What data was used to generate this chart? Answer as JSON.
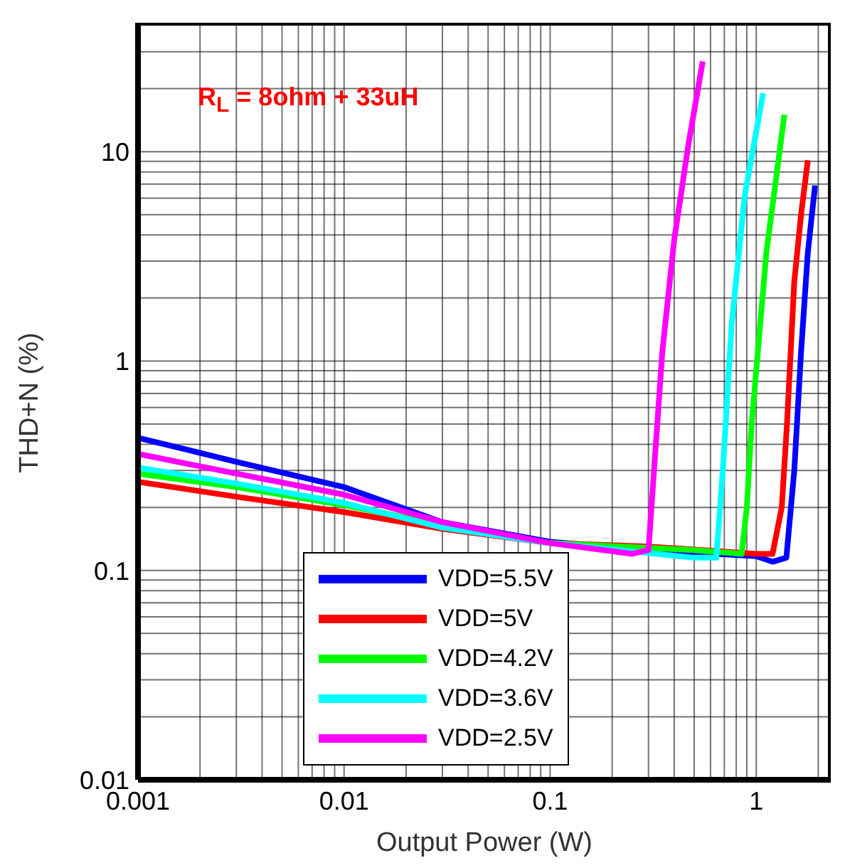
{
  "chart_data": {
    "type": "line",
    "xlabel": "Output Power (W)",
    "ylabel": "THD+N (%)",
    "annotations": [
      "R$_{L}$ = 8ohm + 33uH"
    ],
    "log": "xy",
    "grid": true,
    "legend": "bottom",
    "marker": "none",
    "line_style": "solid",
    "xlim": [
      0.001,
      2.3
    ],
    "ylim": [
      0.01,
      40
    ],
    "xticks": [
      0.001,
      {
        "value": 0.002,
        "label": null
      },
      {
        "value": 0.003,
        "label": null
      },
      {
        "value": 0.004,
        "label": null
      },
      {
        "value": 0.005,
        "label": null
      },
      {
        "value": 0.006,
        "label": null
      },
      {
        "value": 0.007,
        "label": null
      },
      {
        "value": 0.008,
        "label": null
      },
      {
        "value": 0.009,
        "label": null
      },
      0.01,
      {
        "value": 0.02,
        "label": null
      },
      {
        "value": 0.03,
        "label": null
      },
      {
        "value": 0.04,
        "label": null
      },
      {
        "value": 0.05,
        "label": null
      },
      {
        "value": 0.06,
        "label": null
      },
      {
        "value": 0.07,
        "label": null
      },
      {
        "value": 0.08,
        "label": null
      },
      {
        "value": 0.09,
        "label": null
      },
      0.1,
      {
        "value": 0.2,
        "label": null
      },
      {
        "value": 0.3,
        "label": null
      },
      {
        "value": 0.4,
        "label": null
      },
      {
        "value": 0.5,
        "label": null
      },
      {
        "value": 0.6,
        "label": null
      },
      {
        "value": 0.7,
        "label": null
      },
      {
        "value": 0.8,
        "label": null
      },
      {
        "value": 0.9,
        "label": null
      },
      1,
      {
        "value": 2,
        "label": null
      }
    ],
    "yticks": [
      0.01,
      {
        "value": 0.02,
        "label": null
      },
      {
        "value": 0.03,
        "label": null
      },
      {
        "value": 0.04,
        "label": null
      },
      {
        "value": 0.05,
        "label": null
      },
      {
        "value": 0.06,
        "label": null
      },
      {
        "value": 0.07,
        "label": null
      },
      {
        "value": 0.08,
        "label": null
      },
      {
        "value": 0.09,
        "label": null
      },
      0.1,
      {
        "value": 0.2,
        "label": null
      },
      {
        "value": 0.3,
        "label": null
      },
      {
        "value": 0.4,
        "label": null
      },
      {
        "value": 0.5,
        "label": null
      },
      {
        "value": 0.6,
        "label": null
      },
      {
        "value": 0.7,
        "label": null
      },
      {
        "value": 0.8,
        "label": null
      },
      {
        "value": 0.9,
        "label": null
      },
      1,
      {
        "value": 2,
        "label": null
      },
      {
        "value": 3,
        "label": null
      },
      {
        "value": 4,
        "label": null
      },
      {
        "value": 5,
        "label": null
      },
      {
        "value": 6,
        "label": null
      },
      {
        "value": 7,
        "label": null
      },
      {
        "value": 8,
        "label": null
      },
      {
        "value": 9,
        "label": null
      },
      10,
      {
        "value": 20,
        "label": null
      },
      {
        "value": 30,
        "label": null
      }
    ],
    "series": [
      {
        "name": "VDD=5.5V",
        "color": "#0000ff",
        "x": [
          0.001,
          0.003,
          0.01,
          0.03,
          0.1,
          0.3,
          1,
          1.2,
          1.4,
          1.53,
          1.65,
          1.78,
          1.93
        ],
        "values": [
          0.43,
          0.33,
          0.25,
          0.17,
          0.137,
          0.125,
          0.117,
          0.11,
          0.115,
          0.3,
          1.1,
          3.3,
          6.9
        ]
      },
      {
        "name": "VDD=5V",
        "color": "#ff0000",
        "x": [
          0.001,
          0.003,
          0.01,
          0.03,
          0.1,
          0.3,
          1,
          1.2,
          1.33,
          1.41,
          1.53,
          1.65,
          1.78
        ],
        "values": [
          0.265,
          0.225,
          0.19,
          0.158,
          0.135,
          0.13,
          0.12,
          0.12,
          0.2,
          0.5,
          2.4,
          5,
          9.1
        ]
      },
      {
        "name": "VDD=4.2V",
        "color": "#00ff00",
        "x": [
          0.001,
          0.003,
          0.01,
          0.03,
          0.1,
          0.5,
          0.85,
          0.9,
          0.95,
          1.12,
          1.37
        ],
        "values": [
          0.29,
          0.25,
          0.205,
          0.165,
          0.135,
          0.125,
          0.12,
          0.2,
          0.5,
          3.3,
          15
        ]
      },
      {
        "name": "VDD=3.6V",
        "color": "#00ffff",
        "x": [
          0.001,
          0.003,
          0.01,
          0.03,
          0.1,
          0.5,
          0.64,
          0.69,
          0.76,
          0.88,
          1.08
        ],
        "values": [
          0.31,
          0.26,
          0.21,
          0.16,
          0.135,
          0.115,
          0.115,
          0.31,
          1.5,
          6.2,
          19
        ]
      },
      {
        "name": "VDD=2.5V",
        "color": "#ff00ff",
        "x": [
          0.001,
          0.003,
          0.01,
          0.03,
          0.1,
          0.25,
          0.3,
          0.32,
          0.35,
          0.4,
          0.47,
          0.55
        ],
        "values": [
          0.36,
          0.29,
          0.23,
          0.17,
          0.135,
          0.12,
          0.125,
          0.31,
          1.1,
          3.8,
          11,
          27
        ]
      }
    ]
  }
}
